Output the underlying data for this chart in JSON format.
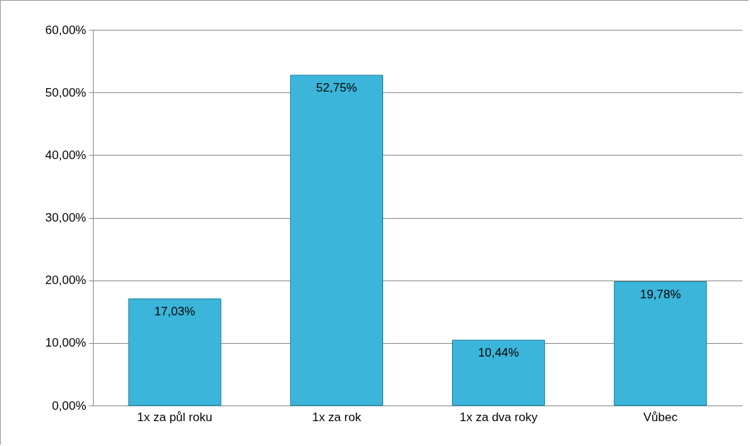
{
  "chart_data": {
    "type": "bar",
    "categories": [
      "1x za půl roku",
      "1x za rok",
      "1x za dva roky",
      "Vůbec"
    ],
    "values": [
      17.03,
      52.75,
      10.44,
      19.78
    ],
    "value_labels": [
      "17,03%",
      "52,75%",
      "10,44%",
      "19,78%"
    ],
    "color": "#3bb5d9",
    "ylim": [
      0,
      60
    ],
    "yticks": [
      {
        "value": 0,
        "label": "0,00%"
      },
      {
        "value": 10,
        "label": "10,00%"
      },
      {
        "value": 20,
        "label": "20,00%"
      },
      {
        "value": 30,
        "label": "30,00%"
      },
      {
        "value": 40,
        "label": "40,00%"
      },
      {
        "value": 50,
        "label": "50,00%"
      },
      {
        "value": 60,
        "label": "60,00%"
      }
    ],
    "grid": "y"
  }
}
